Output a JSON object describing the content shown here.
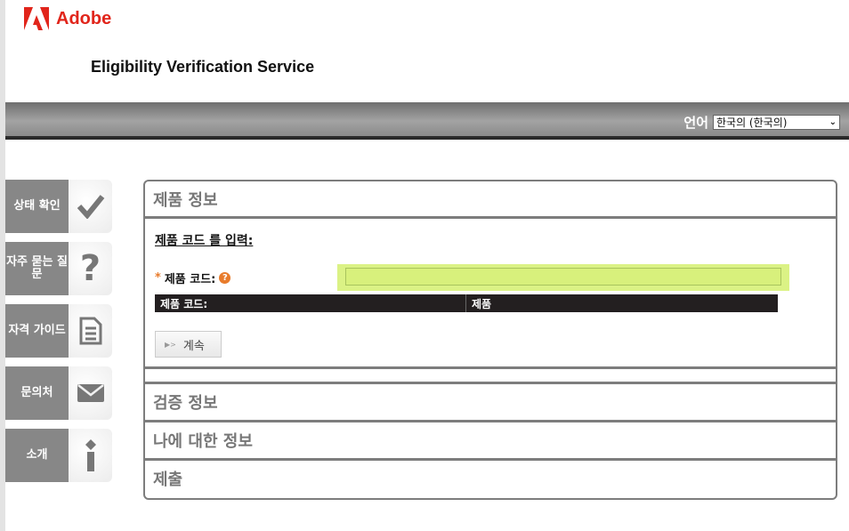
{
  "brand": {
    "logo_text": "Adobe",
    "accent": "#e1251b"
  },
  "header": {
    "title": "Eligibility Verification Service"
  },
  "language": {
    "label": "언어",
    "selected": "한국의 (한국의)"
  },
  "sidebar": {
    "items": [
      {
        "label": "상태 확인",
        "icon": "checkmark-icon"
      },
      {
        "label": "자주 묻는 질문",
        "icon": "question-icon"
      },
      {
        "label": "자격 가이드",
        "icon": "document-icon"
      },
      {
        "label": "문의처",
        "icon": "envelope-icon"
      },
      {
        "label": "소개",
        "icon": "info-icon"
      }
    ]
  },
  "panel": {
    "product_info": "제품 정보",
    "enter_code": "제품 코드 를 입력:",
    "required_mark": "*",
    "code_label": "제품 코드:",
    "help_icon": "?",
    "code_value": "",
    "table_headers": [
      "제품 코드:",
      "제품"
    ],
    "continue_label": "계속",
    "sections": [
      "검증 정보",
      "나에 대한 정보",
      "제출"
    ]
  }
}
